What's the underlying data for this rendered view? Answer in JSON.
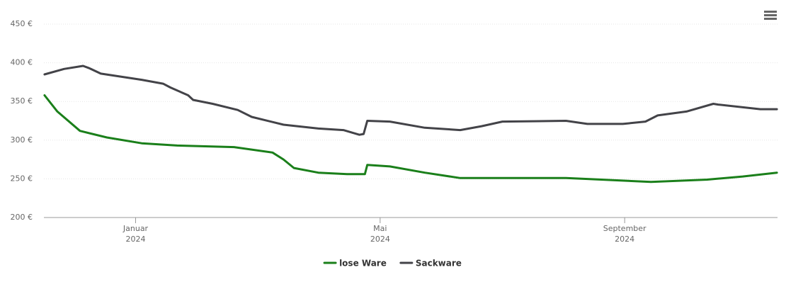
{
  "chart_data": {
    "type": "line",
    "xlim": [
      -0.5,
      11.5
    ],
    "xticks": [
      {
        "value": 1,
        "label": [
          "Januar",
          "2024"
        ]
      },
      {
        "value": 5,
        "label": [
          "Mai",
          "2024"
        ]
      },
      {
        "value": 9,
        "label": [
          "September",
          "2024"
        ]
      }
    ],
    "ylim": [
      200,
      450
    ],
    "yticks": [
      {
        "value": 200,
        "label": "200 €"
      },
      {
        "value": 250,
        "label": "250 €"
      },
      {
        "value": 300,
        "label": "300 €"
      },
      {
        "value": 350,
        "label": "350 €"
      },
      {
        "value": 400,
        "label": "400 €"
      },
      {
        "value": 450,
        "label": "450 €"
      }
    ],
    "grid": true,
    "legend": "bottom",
    "series": [
      {
        "name": "lose Ware",
        "color": "#1a7f1a",
        "x": [
          -0.49,
          -0.28,
          0.09,
          0.53,
          1.1,
          1.68,
          2.61,
          3.24,
          3.42,
          3.59,
          3.99,
          4.46,
          4.75,
          4.79,
          5.16,
          5.73,
          6.31,
          8.04,
          8.62,
          9.43,
          10.35,
          10.93,
          11.49
        ],
        "values": [
          358,
          337,
          312,
          303.5,
          296,
          293,
          291,
          284,
          275,
          264,
          258,
          256,
          256,
          268,
          266,
          258,
          251,
          251,
          249,
          246,
          249,
          253,
          258
        ]
      },
      {
        "name": "Sackware",
        "color": "#434348",
        "x": [
          -0.49,
          -0.17,
          0.14,
          0.24,
          0.43,
          1.1,
          1.45,
          1.57,
          1.86,
          1.94,
          2.26,
          2.67,
          2.9,
          3.42,
          3.99,
          4.4,
          4.66,
          4.73,
          4.79,
          5.16,
          5.73,
          6.31,
          6.66,
          7.0,
          8.04,
          8.39,
          8.97,
          9.34,
          9.54,
          10.01,
          10.45,
          10.53,
          11.22,
          11.49
        ],
        "values": [
          385,
          392,
          396,
          393,
          386,
          378,
          373,
          368,
          358,
          352,
          347,
          339,
          330,
          320,
          315,
          313,
          307,
          308,
          325,
          324,
          316,
          313,
          318,
          324,
          325,
          321,
          321,
          324,
          332,
          337,
          347,
          346,
          340,
          340
        ]
      }
    ]
  }
}
